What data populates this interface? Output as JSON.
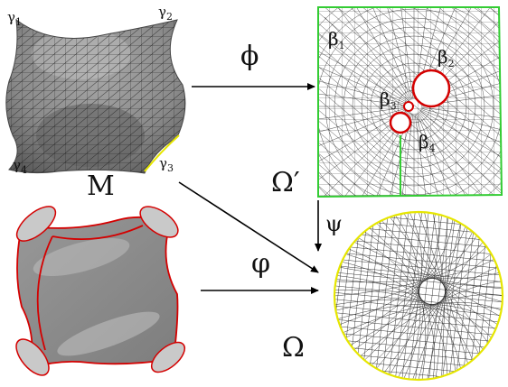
{
  "surface_top": {
    "curve_labels": [
      {
        "base": "γ",
        "sub": "1"
      },
      {
        "base": "γ",
        "sub": "2"
      },
      {
        "base": "γ",
        "sub": "3"
      },
      {
        "base": "γ",
        "sub": "4"
      }
    ],
    "name": "M"
  },
  "planar_domain": {
    "boundary_labels": [
      {
        "base": "β",
        "sub": "1"
      },
      {
        "base": "β",
        "sub": "2"
      },
      {
        "base": "β",
        "sub": "3"
      },
      {
        "base": "β",
        "sub": "4"
      }
    ],
    "name": "Ω′"
  },
  "disk_domain": {
    "name": "Ω"
  },
  "maps": {
    "top": "ϕ",
    "vertical": "ψ",
    "bottom": "φ"
  },
  "colors": {
    "surface": "#8c8c8c",
    "mesh": "#1a1a1a",
    "planar_border": "#33cc33",
    "circle_border": "#d40000",
    "disk_border": "#e6e600"
  }
}
